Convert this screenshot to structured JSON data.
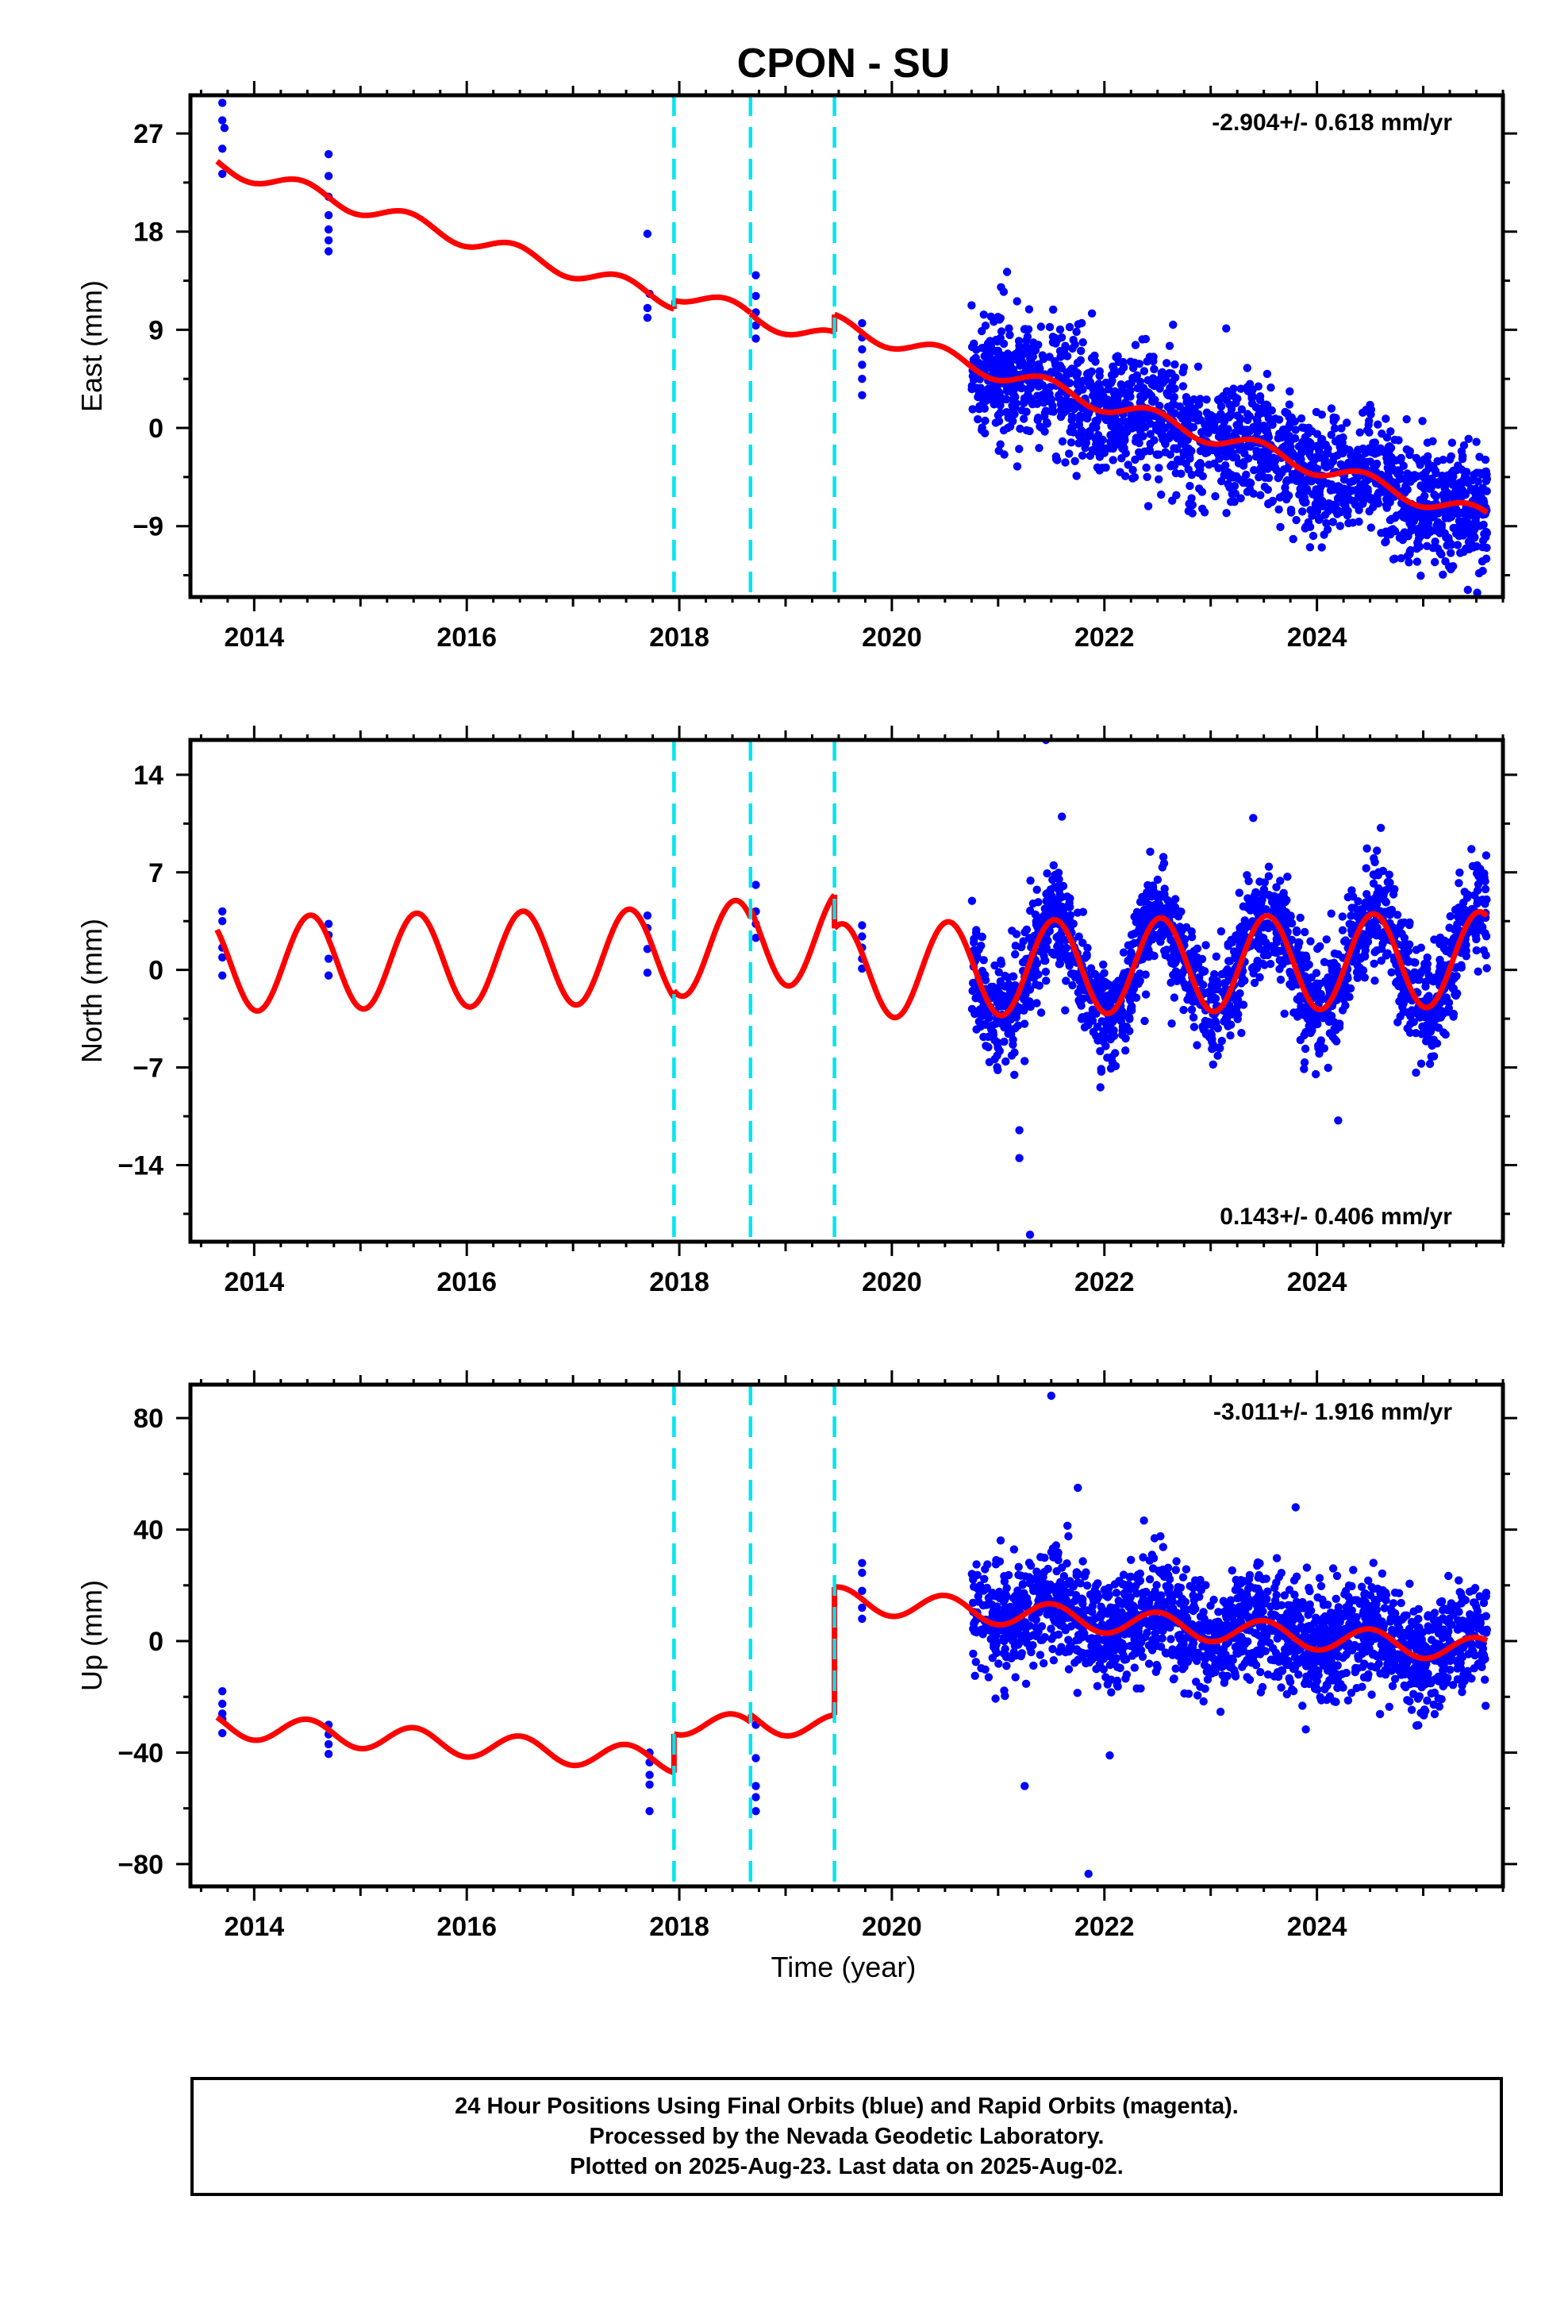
{
  "chart_data": {
    "type": "scatter",
    "title": "CPON - SU",
    "xlabel": "Time (year)",
    "xlim": [
      2013.4,
      2025.75
    ],
    "x_ticks": [
      2014,
      2016,
      2018,
      2020,
      2022,
      2024
    ],
    "x_tick_labels": [
      "2014",
      "2016",
      "2018",
      "2020",
      "2022",
      "2024"
    ],
    "x_minor_step": 0.25,
    "marker_color": "#0000ff",
    "fit_color": "#ff0000",
    "offset_color": "#00e5ee",
    "offset_epochs": [
      2017.95,
      2018.67,
      2019.46
    ],
    "panels": [
      {
        "name": "East",
        "ylabel": "East (mm)",
        "ylim": [
          -15.5,
          30.5
        ],
        "y_ticks": [
          -9,
          0,
          9,
          18,
          27
        ],
        "y_tick_labels": [
          "−9",
          "0",
          "9",
          "18",
          "27"
        ],
        "y_minor_step": 4.5,
        "rate_label": "-2.904+/- 0.618 mm/yr",
        "rate_position": "top-right",
        "rate": -2.904,
        "fit": {
          "amplitude": 0.8,
          "phase_peak": 0.45,
          "segments": [
            {
              "start": 2013.65,
              "end": 2017.95,
              "intercept": 24.2
            },
            {
              "start": 2017.95,
              "end": 2018.67,
              "intercept": 12.5
            },
            {
              "start": 2018.67,
              "end": 2019.46,
              "intercept": 10.3
            },
            {
              "start": 2019.46,
              "end": 2025.6,
              "intercept": 9.6
            }
          ]
        },
        "early_points": [
          [
            2013.7,
            29.8
          ],
          [
            2013.7,
            28.2
          ],
          [
            2013.72,
            27.5
          ],
          [
            2013.7,
            25.6
          ],
          [
            2013.7,
            23.3
          ],
          [
            2014.7,
            25.1
          ],
          [
            2014.7,
            23.1
          ],
          [
            2014.7,
            21.2
          ],
          [
            2014.7,
            19.5
          ],
          [
            2014.7,
            18.2
          ],
          [
            2014.7,
            17.2
          ],
          [
            2014.7,
            16.2
          ],
          [
            2017.7,
            17.8
          ],
          [
            2017.72,
            12.3
          ],
          [
            2017.7,
            11.0
          ],
          [
            2017.7,
            10.1
          ],
          [
            2018.72,
            14.0
          ],
          [
            2018.72,
            12.1
          ],
          [
            2018.72,
            10.6
          ],
          [
            2018.72,
            9.4
          ],
          [
            2018.72,
            8.2
          ],
          [
            2019.72,
            9.6
          ],
          [
            2019.72,
            8.3
          ],
          [
            2019.72,
            7.2
          ],
          [
            2019.72,
            5.8
          ],
          [
            2019.72,
            4.5
          ],
          [
            2019.72,
            3.0
          ]
        ],
        "dense": {
          "start": 2020.75,
          "end": 2025.6,
          "count": 1900,
          "sd": 2.8,
          "seed": 11
        }
      },
      {
        "name": "North",
        "ylabel": "North (mm)",
        "ylim": [
          -19.5,
          16.5
        ],
        "y_ticks": [
          -14,
          -7,
          0,
          7,
          14
        ],
        "y_tick_labels": [
          "−14",
          "−7",
          "0",
          "7",
          "14"
        ],
        "y_minor_step": 3.5,
        "rate_label": "0.143+/- 0.406 mm/yr",
        "rate_position": "bottom-right",
        "rate": 0.143,
        "fit": {
          "amplitude": 3.4,
          "phase_peak": 0.53,
          "segments": [
            {
              "start": 2013.65,
              "end": 2017.95,
              "intercept": 0.4
            },
            {
              "start": 2017.95,
              "end": 2018.67,
              "intercept": 1.5
            },
            {
              "start": 2018.67,
              "end": 2019.46,
              "intercept": 2.2
            },
            {
              "start": 2019.46,
              "end": 2025.6,
              "intercept": -0.1
            }
          ]
        },
        "early_points": [
          [
            2013.7,
            4.2
          ],
          [
            2013.7,
            3.5
          ],
          [
            2013.7,
            1.6
          ],
          [
            2013.7,
            0.9
          ],
          [
            2013.7,
            -0.4
          ],
          [
            2014.7,
            3.3
          ],
          [
            2014.7,
            2.5
          ],
          [
            2014.7,
            0.8
          ],
          [
            2014.7,
            -0.4
          ],
          [
            2017.7,
            3.9
          ],
          [
            2017.7,
            3.0
          ],
          [
            2017.7,
            1.5
          ],
          [
            2017.7,
            -0.2
          ],
          [
            2018.72,
            6.1
          ],
          [
            2018.72,
            4.2
          ],
          [
            2018.72,
            3.3
          ],
          [
            2018.72,
            2.3
          ],
          [
            2019.72,
            3.2
          ],
          [
            2019.72,
            2.4
          ],
          [
            2019.72,
            1.6
          ],
          [
            2019.72,
            0.8
          ],
          [
            2019.72,
            0.1
          ]
        ],
        "dense": {
          "start": 2020.75,
          "end": 2025.6,
          "count": 1900,
          "sd": 1.9,
          "seed": 23
        },
        "outliers": [
          [
            2021.45,
            16.5
          ],
          [
            2021.3,
            -19.0
          ],
          [
            2021.2,
            -13.5
          ],
          [
            2021.2,
            -11.5
          ],
          [
            2024.2,
            -10.8
          ],
          [
            2023.4,
            10.9
          ],
          [
            2021.6,
            11.0
          ]
        ]
      },
      {
        "name": "Up",
        "ylabel": "Up (mm)",
        "ylim": [
          -88,
          92
        ],
        "y_ticks": [
          -80,
          -40,
          0,
          40,
          80
        ],
        "y_tick_labels": [
          "−80",
          "−40",
          "0",
          "40",
          "80"
        ],
        "y_minor_step": 20,
        "rate_label": "-3.011+/- 1.916 mm/yr",
        "rate_position": "top-right",
        "rate": -3.011,
        "fit": {
          "amplitude": 4.5,
          "phase_peak": 0.5,
          "segments": [
            {
              "start": 2013.65,
              "end": 2017.95,
              "intercept": -30.0
            },
            {
              "start": 2017.95,
              "end": 2018.67,
              "intercept": -29.0
            },
            {
              "start": 2018.67,
              "end": 2019.46,
              "intercept": -28.5
            },
            {
              "start": 2019.46,
              "end": 2025.6,
              "intercept": 15.0
            }
          ]
        },
        "early_points": [
          [
            2013.7,
            -18.0
          ],
          [
            2013.7,
            -22.5
          ],
          [
            2013.7,
            -26.0
          ],
          [
            2013.7,
            -28.0
          ],
          [
            2013.7,
            -33.0
          ],
          [
            2014.7,
            -30.0
          ],
          [
            2014.7,
            -33.5
          ],
          [
            2014.7,
            -37.0
          ],
          [
            2014.7,
            -40.5
          ],
          [
            2017.72,
            -40.0
          ],
          [
            2017.72,
            -43.5
          ],
          [
            2017.72,
            -48.0
          ],
          [
            2017.72,
            -51.5
          ],
          [
            2017.72,
            -61.0
          ],
          [
            2018.72,
            -30.0
          ],
          [
            2018.72,
            -42.0
          ],
          [
            2018.72,
            -52.0
          ],
          [
            2018.72,
            -56.0
          ],
          [
            2018.72,
            -61.0
          ],
          [
            2019.72,
            28.0
          ],
          [
            2019.72,
            24.5
          ],
          [
            2019.72,
            18.0
          ],
          [
            2019.72,
            12.0
          ],
          [
            2019.72,
            8.0
          ]
        ],
        "dense": {
          "start": 2020.75,
          "end": 2025.6,
          "count": 1900,
          "sd": 10.0,
          "seed": 37
        },
        "outliers": [
          [
            2021.5,
            88.0
          ],
          [
            2021.85,
            -83.5
          ],
          [
            2021.25,
            -52.0
          ],
          [
            2023.8,
            48.0
          ],
          [
            2021.75,
            55.0
          ],
          [
            2022.05,
            -41.0
          ]
        ]
      }
    ]
  },
  "footer": {
    "line1": "24 Hour Positions Using Final Orbits (blue) and Rapid Orbits (magenta).",
    "line2": "Processed by the Nevada Geodetic Laboratory.",
    "line3": "Plotted on 2025-Aug-23. Last data on 2025-Aug-02."
  }
}
